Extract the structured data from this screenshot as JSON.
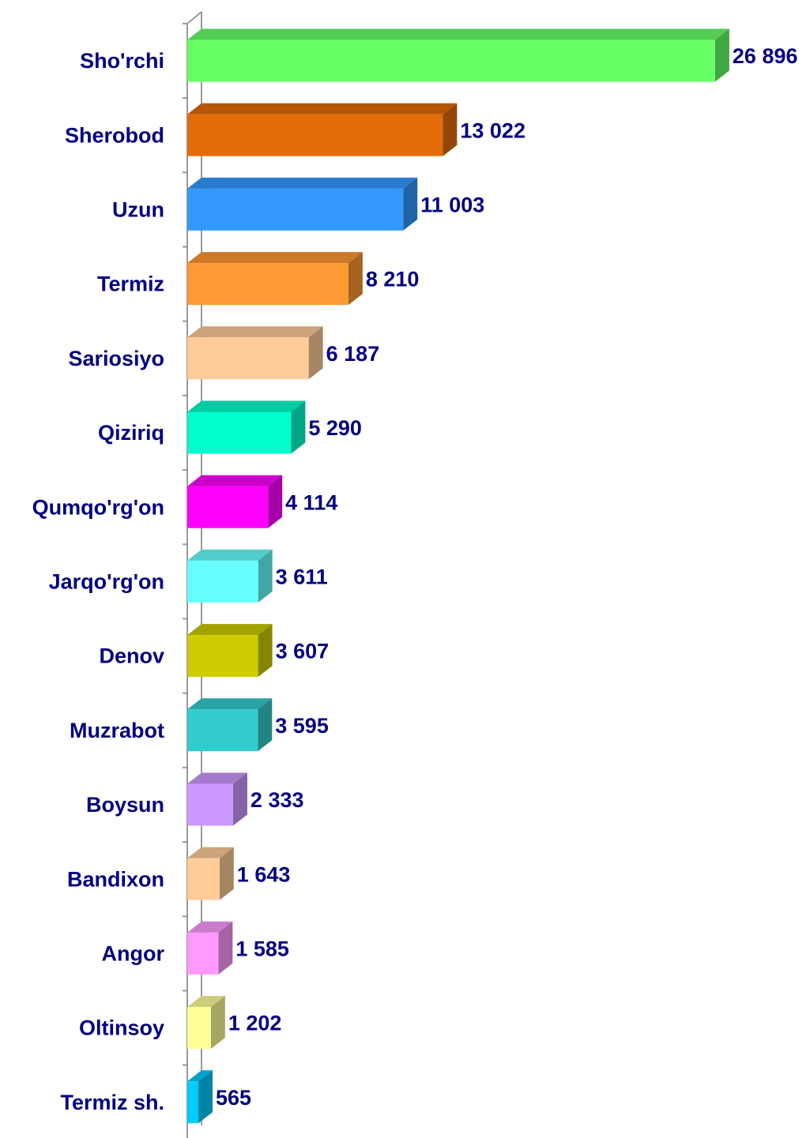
{
  "chart_data": {
    "type": "bar3d_horizontal",
    "categories": [
      "Sho'rchi",
      "Sherobod",
      "Uzun",
      "Termiz",
      "Sariosiyo",
      "Qiziriq",
      "Qumqo'rg'on",
      "Jarqo'rg'on",
      "Denov",
      "Muzrabot",
      "Boysun",
      "Bandixon",
      "Angor",
      "Oltinsoy",
      "Termiz sh."
    ],
    "values": [
      26896,
      13022,
      11003,
      8210,
      6187,
      5290,
      4114,
      3611,
      3607,
      3595,
      2333,
      1643,
      1585,
      1202,
      565
    ],
    "value_labels": [
      "26 896",
      "13 022",
      "11 003",
      "8 210",
      "6 187",
      "5 290",
      "4 114",
      "3 611",
      "3 607",
      "3 595",
      "2 333",
      "1 643",
      "1 585",
      "1 202",
      "565"
    ],
    "colors": [
      "#66ff66",
      "#e36c09",
      "#3399ff",
      "#ff9933",
      "#ffcc99",
      "#00ffcc",
      "#ff00ff",
      "#66ffff",
      "#cccc00",
      "#33cccc",
      "#cc99ff",
      "#ffcc99",
      "#ff99ff",
      "#ffff99",
      "#00ccff"
    ],
    "xlim": [
      0,
      30000
    ]
  }
}
